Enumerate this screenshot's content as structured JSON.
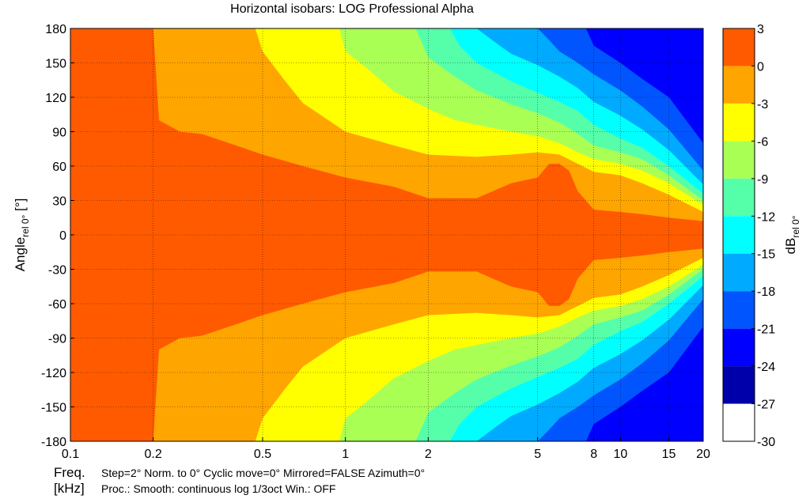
{
  "chart_data": {
    "type": "heatmap",
    "title": "Horizontal isobars: LOG Professional  Alpha",
    "ylabel_main": "Angle",
    "ylabel_sub": "rel 0°",
    "ylabel_unit": " [°]",
    "xlabel": "Freq.",
    "xunit": "[kHz]",
    "x_scale": "log",
    "xlim": [
      0.1,
      20
    ],
    "ylim": [
      -180,
      180
    ],
    "xticks": [
      0.1,
      0.2,
      0.5,
      1,
      2,
      5,
      8,
      10,
      15,
      20
    ],
    "xtick_labels": [
      "0.1",
      "0.2",
      "0.5",
      "1",
      "2",
      "5",
      "8",
      "10",
      "15",
      "20"
    ],
    "yticks": [
      180,
      150,
      120,
      90,
      60,
      30,
      0,
      -30,
      -60,
      -90,
      -120,
      -150,
      -180
    ],
    "grid": true,
    "colorbar": {
      "label_main": "dB",
      "label_sub": "rel 0°",
      "levels": [
        3,
        0,
        -3,
        -6,
        -9,
        -12,
        -15,
        -18,
        -21,
        -24,
        -27,
        -30
      ],
      "band_colors": [
        "#ff5a00",
        "#ffa500",
        "#ffff00",
        "#aaff55",
        "#55ffaa",
        "#00ffff",
        "#00aaff",
        "#0055ff",
        "#0000ff",
        "#0000aa"
      ]
    },
    "contours": [
      {
        "level": -3,
        "half_width": [
          [
            0.1,
            180
          ],
          [
            0.2,
            180
          ],
          [
            0.21,
            100
          ],
          [
            0.25,
            90
          ],
          [
            0.3,
            88
          ],
          [
            0.4,
            78
          ],
          [
            0.5,
            70
          ],
          [
            0.7,
            60
          ],
          [
            1,
            50
          ],
          [
            1.5,
            42
          ],
          [
            2,
            32
          ],
          [
            3,
            32
          ],
          [
            4,
            45
          ],
          [
            5,
            50
          ],
          [
            5.5,
            62
          ],
          [
            6,
            62
          ],
          [
            6.5,
            56
          ],
          [
            7,
            38
          ],
          [
            8,
            22
          ],
          [
            10,
            20
          ],
          [
            12,
            18
          ],
          [
            15,
            15
          ],
          [
            20,
            12
          ]
        ]
      },
      {
        "level": -6,
        "half_width": [
          [
            0.1,
            180
          ],
          [
            0.47,
            180
          ],
          [
            0.5,
            160
          ],
          [
            0.6,
            135
          ],
          [
            0.7,
            115
          ],
          [
            1,
            90
          ],
          [
            1.5,
            78
          ],
          [
            2,
            70
          ],
          [
            3,
            68
          ],
          [
            4,
            70
          ],
          [
            5,
            72
          ],
          [
            6,
            70
          ],
          [
            7,
            62
          ],
          [
            8,
            55
          ],
          [
            10,
            52
          ],
          [
            12,
            45
          ],
          [
            15,
            35
          ],
          [
            20,
            20
          ]
        ]
      },
      {
        "level": -9,
        "half_width": [
          [
            0.1,
            180
          ],
          [
            0.95,
            180
          ],
          [
            1,
            160
          ],
          [
            1.2,
            145
          ],
          [
            1.5,
            125
          ],
          [
            2,
            110
          ],
          [
            2.5,
            100
          ],
          [
            3,
            96
          ],
          [
            4,
            90
          ],
          [
            5,
            86
          ],
          [
            6,
            80
          ],
          [
            7,
            72
          ],
          [
            8,
            66
          ],
          [
            10,
            62
          ],
          [
            12,
            56
          ],
          [
            15,
            45
          ],
          [
            20,
            26
          ]
        ]
      },
      {
        "level": -12,
        "half_width": [
          [
            0.1,
            180
          ],
          [
            1.8,
            180
          ],
          [
            2,
            155
          ],
          [
            2.5,
            138
          ],
          [
            3,
            126
          ],
          [
            4,
            114
          ],
          [
            5,
            106
          ],
          [
            6,
            98
          ],
          [
            7,
            88
          ],
          [
            8,
            78
          ],
          [
            10,
            72
          ],
          [
            12,
            66
          ],
          [
            15,
            52
          ],
          [
            20,
            30
          ]
        ]
      },
      {
        "level": -15,
        "half_width": [
          [
            0.1,
            180
          ],
          [
            2.4,
            180
          ],
          [
            2.6,
            165
          ],
          [
            3,
            150
          ],
          [
            4,
            134
          ],
          [
            5,
            124
          ],
          [
            6,
            116
          ],
          [
            7,
            108
          ],
          [
            8,
            96
          ],
          [
            10,
            84
          ],
          [
            12,
            76
          ],
          [
            15,
            60
          ],
          [
            20,
            36
          ]
        ]
      },
      {
        "level": -18,
        "half_width": [
          [
            0.1,
            180
          ],
          [
            3,
            180
          ],
          [
            3.5,
            168
          ],
          [
            4,
            158
          ],
          [
            5,
            148
          ],
          [
            6,
            138
          ],
          [
            7,
            128
          ],
          [
            8,
            116
          ],
          [
            10,
            104
          ],
          [
            12,
            92
          ],
          [
            15,
            74
          ],
          [
            20,
            44
          ]
        ]
      },
      {
        "level": -21,
        "half_width": [
          [
            0.1,
            180
          ],
          [
            5,
            180
          ],
          [
            5.5,
            170
          ],
          [
            6,
            160
          ],
          [
            7,
            150
          ],
          [
            8,
            140
          ],
          [
            10,
            126
          ],
          [
            12,
            112
          ],
          [
            15,
            92
          ],
          [
            20,
            56
          ]
        ]
      },
      {
        "level": -24,
        "half_width": [
          [
            0.1,
            180
          ],
          [
            7.5,
            180
          ],
          [
            8,
            165
          ],
          [
            10,
            150
          ],
          [
            12,
            136
          ],
          [
            15,
            120
          ],
          [
            20,
            80
          ]
        ]
      }
    ]
  },
  "footer": {
    "freq_label": "Freq.",
    "line1": "Step=2°   Norm. to 0°   Cyclic move=0°   Mirrored=FALSE   Azimuth=0°",
    "unit_label": "[kHz]",
    "line2": "Proc.: Smooth: continuous log 1/3oct    Win.: OFF"
  }
}
